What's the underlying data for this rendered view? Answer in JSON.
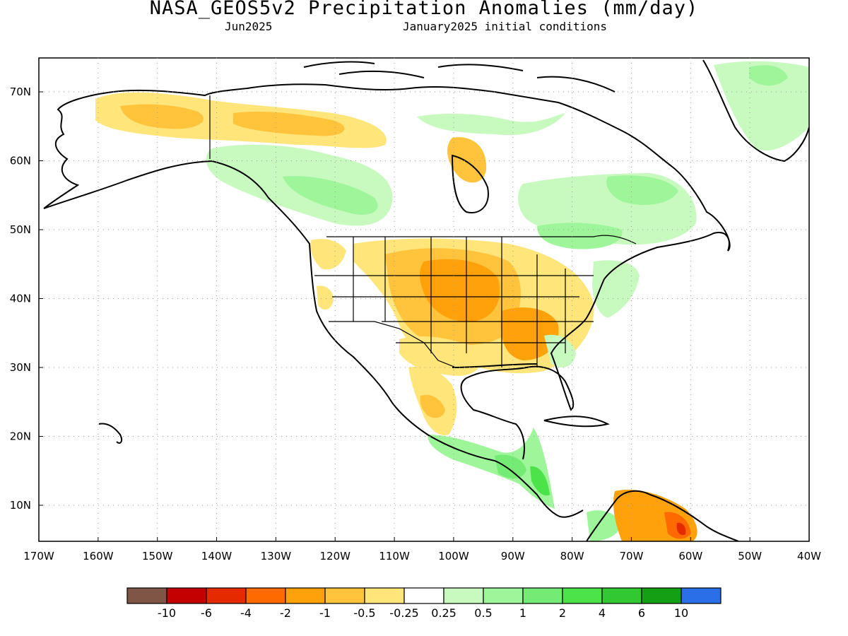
{
  "header": {
    "title": "NASA_GEOS5v2 Precipitation Anomalies (mm/day)",
    "month": "Jun2025",
    "init": "January2025 initial conditions"
  },
  "axes": {
    "lon_labels": [
      "170W",
      "160W",
      "150W",
      "140W",
      "130W",
      "120W",
      "110W",
      "100W",
      "90W",
      "80W",
      "70W",
      "60W",
      "50W",
      "40W"
    ],
    "lat_labels": [
      "70N",
      "60N",
      "50N",
      "40N",
      "30N",
      "20N",
      "10N"
    ]
  },
  "colorbar": {
    "colors": [
      "#7f5646",
      "#c40000",
      "#e52a00",
      "#ff6a00",
      "#ffa10a",
      "#ffc33c",
      "#ffe57a",
      "#ffffff",
      "#c8fac0",
      "#9ef59a",
      "#74eb74",
      "#4ce24a",
      "#32c832",
      "#14a014",
      "#2a6ee8"
    ],
    "labels": [
      "-10",
      "-6",
      "-4",
      "-2",
      "-1",
      "-0.5",
      "-0.25",
      "0.25",
      "0.5",
      "1",
      "2",
      "4",
      "6",
      "10"
    ]
  },
  "colors": {
    "dry_light": "#ffe57a",
    "dry_mid": "#ffc33c",
    "dry_strong": "#ffa10a",
    "dry_heavy": "#ff6a00",
    "dry_extreme": "#e52a00",
    "wet_light": "#c8fac0",
    "wet_mid": "#9ef59a",
    "wet_strong": "#74eb74",
    "wet_heavy": "#4ce24a",
    "wet_extreme": "#14a014"
  }
}
